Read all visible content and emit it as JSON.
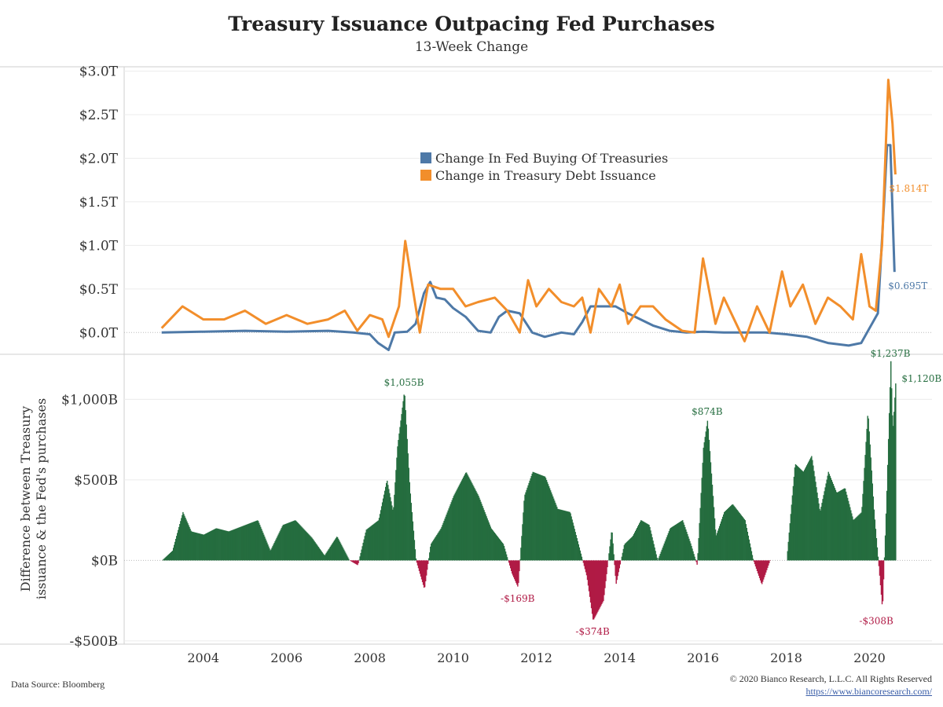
{
  "title": "Treasury Issuance Outpacing Fed Purchases",
  "subtitle": "13-Week Change",
  "source": "Data Source: Bloomberg",
  "copyright": "© 2020 Bianco Research, L.L.C. All Rights Reserved",
  "url": "https://www.biancoresearch.com/",
  "colors": {
    "fed": "#4e79a7",
    "treasury": "#f28e2b",
    "positive": "#256d3f",
    "negative": "#b01a45"
  },
  "chart_data": [
    {
      "type": "line",
      "title": "Treasury Issuance Outpacing Fed Purchases",
      "subtitle": "13-Week Change",
      "ylim": [
        -0.25,
        3.05
      ],
      "y_tick_values": [
        0,
        0.5,
        1.0,
        1.5,
        2.0,
        2.5,
        3.0
      ],
      "y_tick_labels": [
        "$0.0T",
        "$0.5T",
        "$1.0T",
        "$1.5T",
        "$2.0T",
        "$2.5T",
        "$3.0T"
      ],
      "legend_position": "center",
      "series": [
        {
          "name": "Change In Fed Buying Of Treasuries",
          "color": "#4e79a7",
          "x": [
            2003.0,
            2004.0,
            2005.0,
            2006.0,
            2007.0,
            2007.6,
            2008.0,
            2008.2,
            2008.45,
            2008.6,
            2008.9,
            2009.1,
            2009.3,
            2009.45,
            2009.6,
            2009.8,
            2010.0,
            2010.3,
            2010.6,
            2010.9,
            2011.1,
            2011.3,
            2011.6,
            2011.9,
            2012.2,
            2012.6,
            2012.9,
            2013.1,
            2013.3,
            2013.6,
            2013.9,
            2014.2,
            2014.5,
            2014.8,
            2015.2,
            2015.6,
            2016.0,
            2016.5,
            2017.0,
            2017.5,
            2018.0,
            2018.5,
            2019.0,
            2019.5,
            2019.8,
            2020.0,
            2020.2,
            2020.35,
            2020.42,
            2020.5,
            2020.6
          ],
          "y": [
            0.0,
            0.01,
            0.02,
            0.01,
            0.02,
            0.0,
            -0.02,
            -0.12,
            -0.2,
            0.0,
            0.01,
            0.1,
            0.45,
            0.58,
            0.4,
            0.38,
            0.28,
            0.18,
            0.02,
            0.0,
            0.18,
            0.25,
            0.22,
            0.0,
            -0.05,
            0.0,
            -0.02,
            0.12,
            0.3,
            0.3,
            0.3,
            0.22,
            0.15,
            0.08,
            0.02,
            0.0,
            0.01,
            0.0,
            0.0,
            0.0,
            -0.02,
            -0.05,
            -0.12,
            -0.15,
            -0.12,
            0.05,
            0.22,
            1.5,
            2.15,
            2.15,
            0.695
          ]
        },
        {
          "name": "Change in Treasury Debt Issuance",
          "color": "#f28e2b",
          "x": [
            2003.0,
            2003.5,
            2004.0,
            2004.5,
            2005.0,
            2005.5,
            2006.0,
            2006.5,
            2007.0,
            2007.4,
            2007.7,
            2008.0,
            2008.3,
            2008.45,
            2008.7,
            2008.85,
            2009.0,
            2009.2,
            2009.4,
            2009.7,
            2010.0,
            2010.3,
            2010.6,
            2011.0,
            2011.3,
            2011.6,
            2011.8,
            2012.0,
            2012.3,
            2012.6,
            2012.9,
            2013.1,
            2013.3,
            2013.5,
            2013.8,
            2014.0,
            2014.2,
            2014.5,
            2014.8,
            2015.1,
            2015.5,
            2015.8,
            2016.0,
            2016.3,
            2016.5,
            2016.8,
            2017.0,
            2017.3,
            2017.6,
            2017.9,
            2018.1,
            2018.4,
            2018.7,
            2019.0,
            2019.3,
            2019.6,
            2019.8,
            2020.0,
            2020.15,
            2020.3,
            2020.45,
            2020.55,
            2020.62
          ],
          "y": [
            0.05,
            0.3,
            0.15,
            0.15,
            0.25,
            0.1,
            0.2,
            0.1,
            0.15,
            0.25,
            0.02,
            0.2,
            0.15,
            -0.05,
            0.3,
            1.05,
            0.6,
            0.0,
            0.55,
            0.5,
            0.5,
            0.3,
            0.35,
            0.4,
            0.25,
            0.0,
            0.6,
            0.3,
            0.5,
            0.35,
            0.3,
            0.4,
            0.0,
            0.5,
            0.3,
            0.55,
            0.1,
            0.3,
            0.3,
            0.15,
            0.02,
            0.0,
            0.85,
            0.1,
            0.4,
            0.1,
            -0.1,
            0.3,
            0.0,
            0.7,
            0.3,
            0.55,
            0.1,
            0.4,
            0.3,
            0.15,
            0.9,
            0.3,
            0.25,
            1.0,
            2.9,
            2.4,
            1.814
          ]
        }
      ],
      "annotations": [
        {
          "text": "$1.814T",
          "x": 2020.62,
          "y": 1.814,
          "series": "Change in Treasury Debt Issuance"
        },
        {
          "text": "$0.695T",
          "x": 2020.6,
          "y": 0.695,
          "series": "Change In Fed Buying Of Treasuries"
        }
      ]
    },
    {
      "type": "bar",
      "ylabel": "Difference between Treasury issuance & the Fed's purchases",
      "xlabel": "",
      "ylim": [
        -520,
        1280
      ],
      "y_tick_values": [
        -500,
        0,
        500,
        1000
      ],
      "y_tick_labels": [
        "-$500B",
        "$0B",
        "$500B",
        "$1,000B"
      ],
      "x_tick_values": [
        2004,
        2006,
        2008,
        2010,
        2012,
        2014,
        2016,
        2018,
        2020
      ],
      "x_tick_labels": [
        "2004",
        "2006",
        "2008",
        "2010",
        "2012",
        "2014",
        "2016",
        "2018",
        "2020"
      ],
      "envelope_x": [
        2003.0,
        2003.25,
        2003.5,
        2003.7,
        2004.0,
        2004.3,
        2004.6,
        2005.0,
        2005.3,
        2005.6,
        2005.9,
        2006.2,
        2006.6,
        2006.9,
        2007.2,
        2007.5,
        2007.7,
        2007.9,
        2008.2,
        2008.4,
        2008.55,
        2008.65,
        2008.82,
        2008.95,
        2009.1,
        2009.3,
        2009.45,
        2009.7,
        2010.0,
        2010.3,
        2010.6,
        2010.9,
        2011.2,
        2011.4,
        2011.55,
        2011.7,
        2011.9,
        2012.2,
        2012.5,
        2012.8,
        2013.0,
        2013.2,
        2013.35,
        2013.6,
        2013.8,
        2013.9,
        2014.1,
        2014.3,
        2014.5,
        2014.7,
        2014.9,
        2015.2,
        2015.5,
        2015.7,
        2015.85,
        2016.0,
        2016.1,
        2016.3,
        2016.5,
        2016.7,
        2017.0,
        2017.2,
        2017.4,
        2017.6,
        2017.8,
        2018.0,
        2018.2,
        2018.4,
        2018.6,
        2018.8,
        2019.0,
        2019.2,
        2019.4,
        2019.6,
        2019.8,
        2019.95,
        2020.1,
        2020.2,
        2020.3,
        2020.4,
        2020.5,
        2020.55,
        2020.62
      ],
      "envelope_y": [
        0,
        60,
        300,
        180,
        160,
        200,
        180,
        220,
        250,
        60,
        220,
        250,
        140,
        30,
        150,
        0,
        -30,
        190,
        250,
        500,
        300,
        700,
        1055,
        450,
        0,
        -180,
        100,
        200,
        400,
        550,
        400,
        200,
        100,
        -80,
        -169,
        400,
        550,
        520,
        320,
        300,
        100,
        -100,
        -374,
        -250,
        200,
        -150,
        100,
        150,
        250,
        220,
        0,
        200,
        250,
        100,
        -30,
        700,
        874,
        150,
        300,
        350,
        250,
        0,
        -150,
        0,
        0,
        0,
        600,
        550,
        650,
        300,
        550,
        420,
        450,
        250,
        300,
        930,
        300,
        0,
        -308,
        400,
        1237,
        800,
        1120
      ],
      "annotations": [
        {
          "text": "$1,055B",
          "x": 2008.82,
          "y": 1055
        },
        {
          "text": "-$169B",
          "x": 2011.55,
          "y": -169
        },
        {
          "text": "-$374B",
          "x": 2013.35,
          "y": -374
        },
        {
          "text": "$874B",
          "x": 2016.1,
          "y": 874
        },
        {
          "text": "$1,237B",
          "x": 2020.5,
          "y": 1237
        },
        {
          "text": "$1,120B",
          "x": 2020.62,
          "y": 1120
        },
        {
          "text": "-$308B",
          "x": 2020.2,
          "y": -308
        }
      ]
    }
  ]
}
